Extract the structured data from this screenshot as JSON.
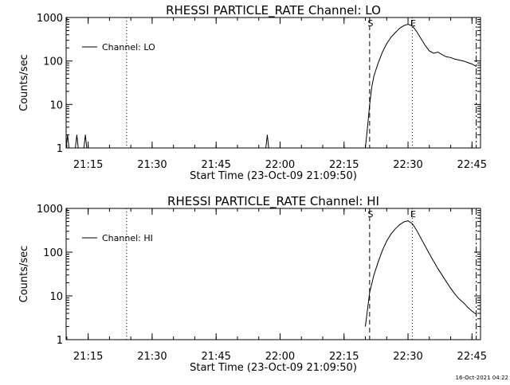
{
  "footer_timestamp": "16-Oct-2021 04:22",
  "chart_data": [
    {
      "type": "line",
      "title": "RHESSI PARTICLE_RATE Channel: LO",
      "xlabel": "Start Time (23-Oct-09 21:09:50)",
      "ylabel": "Counts/sec",
      "y_scale": "log",
      "xlim": [
        "21:09:50",
        "22:47:00"
      ],
      "ylim": [
        1,
        1000
      ],
      "x_ticks": [
        "21:15",
        "21:30",
        "21:45",
        "22:00",
        "22:15",
        "22:30",
        "22:45"
      ],
      "y_ticks": [
        "1",
        "10",
        "100",
        "1000"
      ],
      "legend": {
        "position": "top-left",
        "entries": [
          "Channel: LO"
        ]
      },
      "markers": [
        {
          "time": "21:24",
          "style": "dotted",
          "label": ""
        },
        {
          "time": "22:21",
          "style": "dashed",
          "label": "S"
        },
        {
          "time": "22:31",
          "style": "dotted",
          "label": "E"
        },
        {
          "time": "22:46",
          "style": "dashdot",
          "label": ""
        }
      ],
      "series": [
        {
          "name": "Channel: LO",
          "points": [
            [
              "21:09:50",
              1
            ],
            [
              "21:10:10",
              2
            ],
            [
              "21:10:30",
              1
            ],
            [
              "21:12:00",
              1
            ],
            [
              "21:12:20",
              2
            ],
            [
              "21:12:40",
              1
            ],
            [
              "21:14:00",
              1
            ],
            [
              "21:14:20",
              2
            ],
            [
              "21:14:40",
              1
            ],
            [
              "21:56:40",
              1
            ],
            [
              "21:57:00",
              2
            ],
            [
              "21:57:20",
              1
            ],
            [
              "22:20:00",
              1
            ],
            [
              "22:20:30",
              3
            ],
            [
              "22:21:00",
              10
            ],
            [
              "22:21:30",
              25
            ],
            [
              "22:22:00",
              45
            ],
            [
              "22:23:00",
              90
            ],
            [
              "22:24:00",
              160
            ],
            [
              "22:25:00",
              250
            ],
            [
              "22:26:00",
              350
            ],
            [
              "22:27:00",
              450
            ],
            [
              "22:28:00",
              560
            ],
            [
              "22:29:00",
              650
            ],
            [
              "22:30:00",
              700
            ],
            [
              "22:31:00",
              640
            ],
            [
              "22:32:00",
              480
            ],
            [
              "22:33:00",
              330
            ],
            [
              "22:34:00",
              230
            ],
            [
              "22:35:00",
              170
            ],
            [
              "22:36:00",
              150
            ],
            [
              "22:37:00",
              160
            ],
            [
              "22:38:00",
              140
            ],
            [
              "22:39:00",
              125
            ],
            [
              "22:40:00",
              120
            ],
            [
              "22:41:00",
              110
            ],
            [
              "22:42:00",
              105
            ],
            [
              "22:43:00",
              100
            ],
            [
              "22:44:00",
              92
            ],
            [
              "22:45:00",
              85
            ],
            [
              "22:46:00",
              75
            ]
          ]
        }
      ]
    },
    {
      "type": "line",
      "title": "RHESSI PARTICLE_RATE Channel: HI",
      "xlabel": "Start Time (23-Oct-09 21:09:50)",
      "ylabel": "Counts/sec",
      "y_scale": "log",
      "xlim": [
        "21:09:50",
        "22:47:00"
      ],
      "ylim": [
        1,
        1000
      ],
      "x_ticks": [
        "21:15",
        "21:30",
        "21:45",
        "22:00",
        "22:15",
        "22:30",
        "22:45"
      ],
      "y_ticks": [
        "1",
        "10",
        "100",
        "1000"
      ],
      "legend": {
        "position": "top-left",
        "entries": [
          "Channel: HI"
        ]
      },
      "markers": [
        {
          "time": "21:24",
          "style": "dotted",
          "label": ""
        },
        {
          "time": "22:21",
          "style": "dashed",
          "label": "S"
        },
        {
          "time": "22:31",
          "style": "dotted",
          "label": "E"
        },
        {
          "time": "22:46",
          "style": "dashdot",
          "label": ""
        }
      ],
      "series": [
        {
          "name": "Channel: HI",
          "points": [
            [
              "22:20:00",
              2
            ],
            [
              "22:21:00",
              12
            ],
            [
              "22:22:00",
              30
            ],
            [
              "22:23:00",
              60
            ],
            [
              "22:24:00",
              110
            ],
            [
              "22:25:00",
              180
            ],
            [
              "22:26:00",
              260
            ],
            [
              "22:27:00",
              340
            ],
            [
              "22:28:00",
              420
            ],
            [
              "22:29:00",
              490
            ],
            [
              "22:30:00",
              520
            ],
            [
              "22:31:00",
              450
            ],
            [
              "22:32:00",
              320
            ],
            [
              "22:33:00",
              210
            ],
            [
              "22:34:00",
              140
            ],
            [
              "22:35:00",
              92
            ],
            [
              "22:36:00",
              62
            ],
            [
              "22:37:00",
              42
            ],
            [
              "22:38:00",
              30
            ],
            [
              "22:39:00",
              21
            ],
            [
              "22:40:00",
              15
            ],
            [
              "22:41:00",
              11
            ],
            [
              "22:42:00",
              8.5
            ],
            [
              "22:43:00",
              7
            ],
            [
              "22:44:00",
              5.5
            ],
            [
              "22:45:00",
              4.5
            ],
            [
              "22:46:00",
              3.8
            ]
          ]
        }
      ]
    }
  ]
}
